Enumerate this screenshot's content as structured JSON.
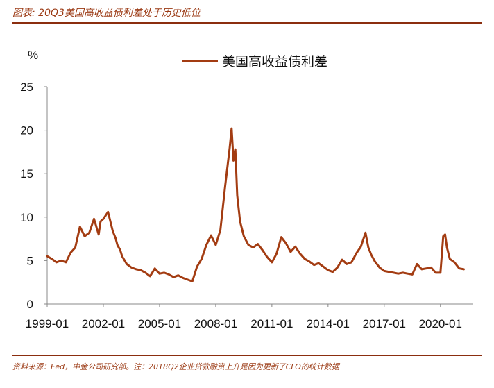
{
  "header": {
    "title": "图表: 20Q3美国高收益债利差处于历史低位"
  },
  "footer": {
    "source": "资料来源：Fed，中金公司研究部。注：2018Q2企业贷款融资上升是因为更新了CLO的统计数据"
  },
  "chart_data": {
    "type": "line",
    "unit_label": "%",
    "ylim": [
      0,
      25
    ],
    "yticks": [
      "0",
      "5",
      "10",
      "15",
      "20",
      "25"
    ],
    "xticks": [
      "1999-01",
      "2002-01",
      "2005-01",
      "2008-01",
      "2011-01",
      "2014-01",
      "2017-01",
      "2020-01"
    ],
    "x_start": 1999.0,
    "x_end": 2021.75,
    "legend_position": "top-center",
    "grid": false,
    "series": [
      {
        "name": "美国高收益债利差",
        "color": "#a33c12",
        "x": [
          1999.0,
          1999.25,
          1999.5,
          1999.75,
          2000.0,
          2000.25,
          2000.5,
          2000.75,
          2001.0,
          2001.25,
          2001.5,
          2001.75,
          2001.85,
          2002.0,
          2002.25,
          2002.5,
          2002.65,
          2002.75,
          2002.9,
          2003.0,
          2003.25,
          2003.5,
          2003.75,
          2004.0,
          2004.25,
          2004.5,
          2004.75,
          2005.0,
          2005.25,
          2005.5,
          2005.75,
          2006.0,
          2006.25,
          2006.5,
          2006.75,
          2007.0,
          2007.25,
          2007.5,
          2007.75,
          2008.0,
          2008.25,
          2008.5,
          2008.75,
          2008.85,
          2008.95,
          2009.05,
          2009.15,
          2009.3,
          2009.5,
          2009.75,
          2010.0,
          2010.25,
          2010.5,
          2010.75,
          2011.0,
          2011.25,
          2011.5,
          2011.75,
          2012.0,
          2012.25,
          2012.5,
          2012.75,
          2013.0,
          2013.25,
          2013.5,
          2013.75,
          2014.0,
          2014.25,
          2014.5,
          2014.75,
          2015.0,
          2015.25,
          2015.5,
          2015.75,
          2016.0,
          2016.15,
          2016.3,
          2016.5,
          2016.75,
          2017.0,
          2017.25,
          2017.5,
          2017.75,
          2018.0,
          2018.25,
          2018.5,
          2018.75,
          2019.0,
          2019.25,
          2019.5,
          2019.75,
          2020.0,
          2020.15,
          2020.25,
          2020.35,
          2020.5,
          2020.75,
          2021.0,
          2021.25
        ],
        "values": [
          5.5,
          5.2,
          4.8,
          5.0,
          4.8,
          5.9,
          6.5,
          8.9,
          7.8,
          8.2,
          9.8,
          8.0,
          9.5,
          9.8,
          10.6,
          8.4,
          7.6,
          6.8,
          6.2,
          5.5,
          4.6,
          4.2,
          4.0,
          3.9,
          3.6,
          3.2,
          4.1,
          3.5,
          3.6,
          3.4,
          3.1,
          3.3,
          3.0,
          2.8,
          2.6,
          4.3,
          5.2,
          6.8,
          7.9,
          6.8,
          8.5,
          13.5,
          18.0,
          20.2,
          16.5,
          17.8,
          12.5,
          9.5,
          7.8,
          6.8,
          6.5,
          6.9,
          6.2,
          5.4,
          4.8,
          5.8,
          7.7,
          7.0,
          6.0,
          6.6,
          5.8,
          5.2,
          4.9,
          4.5,
          4.7,
          4.3,
          3.9,
          3.7,
          4.2,
          5.1,
          4.6,
          4.8,
          5.8,
          6.6,
          8.2,
          6.5,
          5.7,
          4.9,
          4.2,
          3.8,
          3.7,
          3.6,
          3.5,
          3.6,
          3.5,
          3.4,
          4.6,
          4.0,
          4.1,
          4.2,
          3.6,
          3.6,
          7.8,
          8.0,
          6.5,
          5.2,
          4.8,
          4.1,
          4.0
        ]
      }
    ]
  }
}
